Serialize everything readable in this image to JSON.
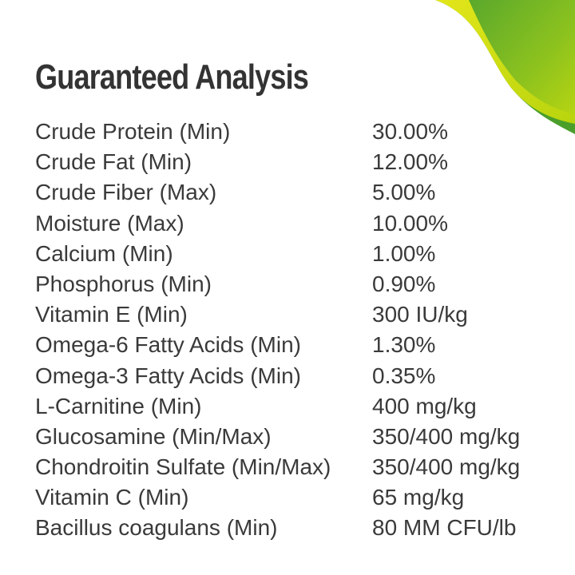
{
  "title": "Guaranteed Analysis",
  "colors": {
    "accent_green": "#4ea52a",
    "accent_yellow": "#c8dc10",
    "text": "#3a3a3a"
  },
  "rows": [
    {
      "label": "Crude Protein (Min)",
      "value": "30.00%"
    },
    {
      "label": "Crude Fat (Min)",
      "value": "12.00%"
    },
    {
      "label": "Crude Fiber (Max)",
      "value": "5.00%"
    },
    {
      "label": "Moisture (Max)",
      "value": "10.00%"
    },
    {
      "label": "Calcium (Min)",
      "value": "1.00%"
    },
    {
      "label": "Phosphorus (Min)",
      "value": "0.90%"
    },
    {
      "label": "Vitamin E (Min)",
      "value": "300 IU/kg"
    },
    {
      "label": "Omega-6 Fatty Acids (Min)",
      "value": "1.30%"
    },
    {
      "label": "Omega-3 Fatty Acids (Min)",
      "value": "0.35%"
    },
    {
      "label": "L-Carnitine (Min)",
      "value": "400 mg/kg"
    },
    {
      "label": "Glucosamine (Min/Max)",
      "value": "350/400 mg/kg"
    },
    {
      "label": "Chondroitin Sulfate (Min/Max)",
      "value": "350/400 mg/kg"
    },
    {
      "label": "Vitamin C (Min)",
      "value": "65 mg/kg"
    },
    {
      "label": "Bacillus coagulans (Min)",
      "value": "80 MM CFU/lb"
    }
  ]
}
